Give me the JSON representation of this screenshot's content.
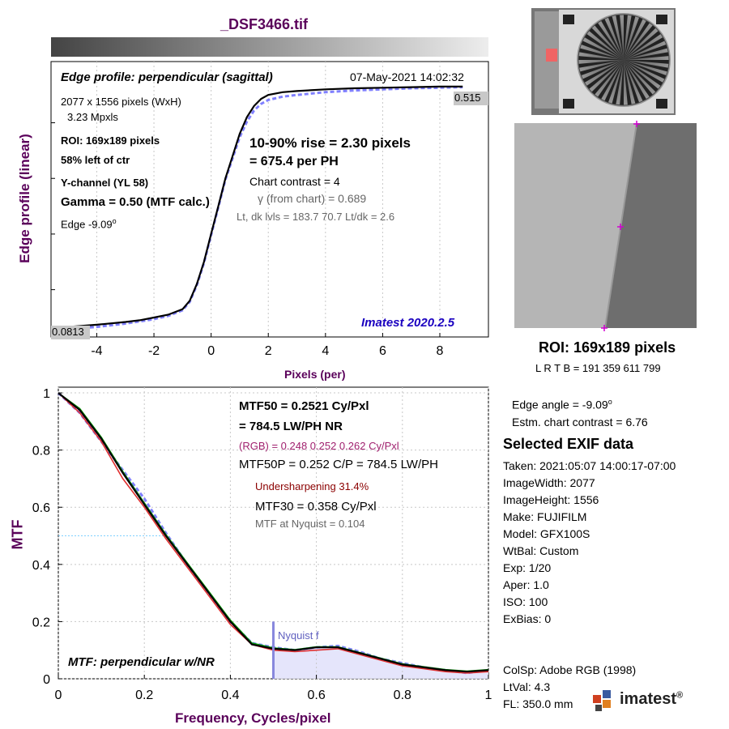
{
  "file_title": "_DSF3466.tif",
  "edge_panel": {
    "title": "Edge profile: perpendicular (sagittal)",
    "datetime": "07-May-2021 14:02:32",
    "size_line": "2077 x 1556 pixels (WxH)",
    "mpxls": "3.23 Mpxls",
    "roi": "ROI:  169x189 pixels",
    "position": "58% left of ctr",
    "channel": "Y-channel  (YL 58)",
    "gamma": "Gamma = 0.50 (MTF calc.)",
    "edge_base": "Edge  -9.09",
    "edge_sup": "o",
    "rise": "10-90% rise = 2.30 pixels",
    "per_ph": "=  675.4 per PH",
    "contrast": "Chart contrast = 4",
    "gamma_chart": "γ (from chart) = 0.689",
    "levels": "Lt, dk lvls = 183.7  70.7  Lt/dk = 2.6",
    "version": "Imatest 2020.2.5",
    "ylabel": "Edge profile (linear)",
    "xlabel": "Pixels (per)",
    "high_label": "0.515",
    "low_label": "0.0813"
  },
  "mtf_panel": {
    "mtf50": "MTF50 = 0.2521 Cy/Pxl",
    "lwph": "= 784.5 LW/PH  NR",
    "rgb": "(RGB) = 0.248  0.252  0.262 Cy/Pxl",
    "mtf50p": "MTF50P = 0.252 C/P = 784.5 LW/PH",
    "undersharp": "Undersharpening 31.4%",
    "mtf30": "MTF30 = 0.358 Cy/Pxl",
    "nyq_mtf": "MTF at Nyquist = 0.104",
    "nyquist_label": "Nyquist f",
    "legend": "MTF: perpendicular w/NR",
    "ylabel": "MTF",
    "xlabel": "Frequency, Cycles/pixel"
  },
  "roi_info": {
    "roi": "ROI:  169x189 pixels",
    "coords": "L R  T B = 191 359  611 799"
  },
  "side_info": {
    "edge_angle_base": "Edge angle = -9.09",
    "edge_angle_sup": "o",
    "estm_contrast": "Estm. chart contrast = 6.76",
    "exif_title": "Selected EXIF data",
    "exif": [
      "Taken: 2021:05:07 14:00:17-07:00",
      "ImageWidth:  2077",
      "ImageHeight:  1556",
      "Make:  FUJIFILM",
      "Model:  GFX100S",
      "WtBal:  Custom",
      "Exp:    1/20",
      "Aper:    1.0",
      "ISO:    100",
      "ExBias:  0"
    ],
    "exif2": [
      "ColSp:  Adobe RGB (1998)",
      "LtVal:  4.3",
      "FL:    350.0 mm"
    ],
    "logo_text": "imatest",
    "logo_reg": "®"
  },
  "colors": {
    "axis_label": "#5a005a",
    "mtf_black": "#000000",
    "mtf_red": "#e03030",
    "mtf_green": "#00a000",
    "mtf_blue_dashed": "#8080ff",
    "nyquist": "#8888dd",
    "nyquist_fill": "#e2e2fb",
    "version_text": "#1a00c0"
  },
  "chart_data": [
    {
      "type": "line",
      "title": "Edge profile: perpendicular (sagittal)",
      "xlabel": "Pixels (per)",
      "ylabel": "Edge profile (linear)",
      "xlim": [
        -5.6,
        9.7
      ],
      "ylim": [
        0.065,
        0.56
      ],
      "xticks": [
        -4,
        -2,
        0,
        2,
        4,
        6,
        8
      ],
      "series": [
        {
          "x": [
            -5.6,
            -5.0,
            -4.0,
            -3.0,
            -2.5,
            -2.0,
            -1.5,
            -1.0,
            -0.75,
            -0.5,
            -0.25,
            0.0,
            0.25,
            0.5,
            0.75,
            1.0,
            1.25,
            1.5,
            1.75,
            2.0,
            2.5,
            3.0,
            4.0,
            5.0,
            6.0,
            7.0,
            8.0,
            8.8
          ],
          "y": [
            0.0813,
            0.083,
            0.087,
            0.092,
            0.095,
            0.1,
            0.105,
            0.115,
            0.13,
            0.16,
            0.2,
            0.25,
            0.3,
            0.35,
            0.39,
            0.43,
            0.46,
            0.48,
            0.493,
            0.5,
            0.505,
            0.507,
            0.51,
            0.512,
            0.513,
            0.514,
            0.515,
            0.515
          ]
        },
        {
          "x": [
            -5.6,
            -5.0,
            -4.0,
            -3.0,
            -2.5,
            -2.0,
            -1.5,
            -1.0,
            -0.75,
            -0.5,
            -0.25,
            0.0,
            0.25,
            0.5,
            0.75,
            1.0,
            1.25,
            1.5,
            1.75,
            2.0,
            2.5,
            3.0,
            4.0,
            5.0,
            6.0,
            7.0,
            8.0,
            8.8
          ],
          "y": [
            0.077,
            0.079,
            0.083,
            0.089,
            0.093,
            0.097,
            0.103,
            0.113,
            0.128,
            0.158,
            0.198,
            0.248,
            0.298,
            0.348,
            0.386,
            0.424,
            0.452,
            0.472,
            0.484,
            0.491,
            0.497,
            0.5,
            0.505,
            0.508,
            0.51,
            0.512,
            0.513,
            0.514
          ]
        }
      ]
    },
    {
      "type": "line",
      "title": "MTF: perpendicular w/NR",
      "xlabel": "Frequency, Cycles/pixel",
      "ylabel": "MTF",
      "xlim": [
        0,
        1
      ],
      "ylim": [
        0,
        1.02
      ],
      "xticks": [
        0,
        0.2,
        0.4,
        0.6,
        0.8,
        1
      ],
      "yticks": [
        0,
        0.2,
        0.4,
        0.6,
        0.8,
        1
      ],
      "nyquist": 0.5,
      "series": [
        {
          "x": [
            0,
            0.05,
            0.1,
            0.15,
            0.2,
            0.25,
            0.3,
            0.35,
            0.4,
            0.45,
            0.5,
            0.55,
            0.6,
            0.65,
            0.7,
            0.75,
            0.8,
            0.85,
            0.9,
            0.95,
            1.0
          ],
          "y": [
            1.0,
            0.94,
            0.84,
            0.72,
            0.61,
            0.5,
            0.4,
            0.3,
            0.2,
            0.12,
            0.105,
            0.1,
            0.11,
            0.11,
            0.09,
            0.07,
            0.05,
            0.04,
            0.03,
            0.025,
            0.03
          ]
        },
        {
          "x": [
            0,
            0.05,
            0.1,
            0.15,
            0.2,
            0.25,
            0.3,
            0.35,
            0.4,
            0.45,
            0.5,
            0.55,
            0.6,
            0.65,
            0.7,
            0.75,
            0.8,
            0.85,
            0.9,
            0.95,
            1.0
          ],
          "y": [
            1.0,
            0.93,
            0.83,
            0.7,
            0.6,
            0.49,
            0.39,
            0.29,
            0.19,
            0.12,
            0.1,
            0.095,
            0.1,
            0.105,
            0.085,
            0.065,
            0.045,
            0.035,
            0.025,
            0.02,
            0.025
          ]
        },
        {
          "x": [
            0,
            0.05,
            0.1,
            0.15,
            0.2,
            0.25,
            0.3,
            0.35,
            0.4,
            0.45,
            0.5,
            0.55,
            0.6,
            0.65,
            0.7,
            0.75,
            0.8,
            0.85,
            0.9,
            0.95,
            1.0
          ],
          "y": [
            1.0,
            0.945,
            0.845,
            0.725,
            0.615,
            0.505,
            0.405,
            0.305,
            0.205,
            0.125,
            0.108,
            0.102,
            0.112,
            0.112,
            0.092,
            0.072,
            0.052,
            0.042,
            0.032,
            0.027,
            0.032
          ]
        },
        {
          "x": [
            0,
            0.05,
            0.1,
            0.15,
            0.2,
            0.25,
            0.3,
            0.35,
            0.4,
            0.45,
            0.5,
            0.55,
            0.6,
            0.65,
            0.7,
            0.75,
            0.8,
            0.85,
            0.9,
            0.95,
            1.0
          ],
          "y": [
            1.0,
            0.93,
            0.83,
            0.73,
            0.63,
            0.51,
            0.4,
            0.3,
            0.2,
            0.125,
            0.11,
            0.1,
            0.11,
            0.115,
            0.095,
            0.07,
            0.055,
            0.04,
            0.03,
            0.02,
            0.03
          ]
        }
      ]
    }
  ]
}
